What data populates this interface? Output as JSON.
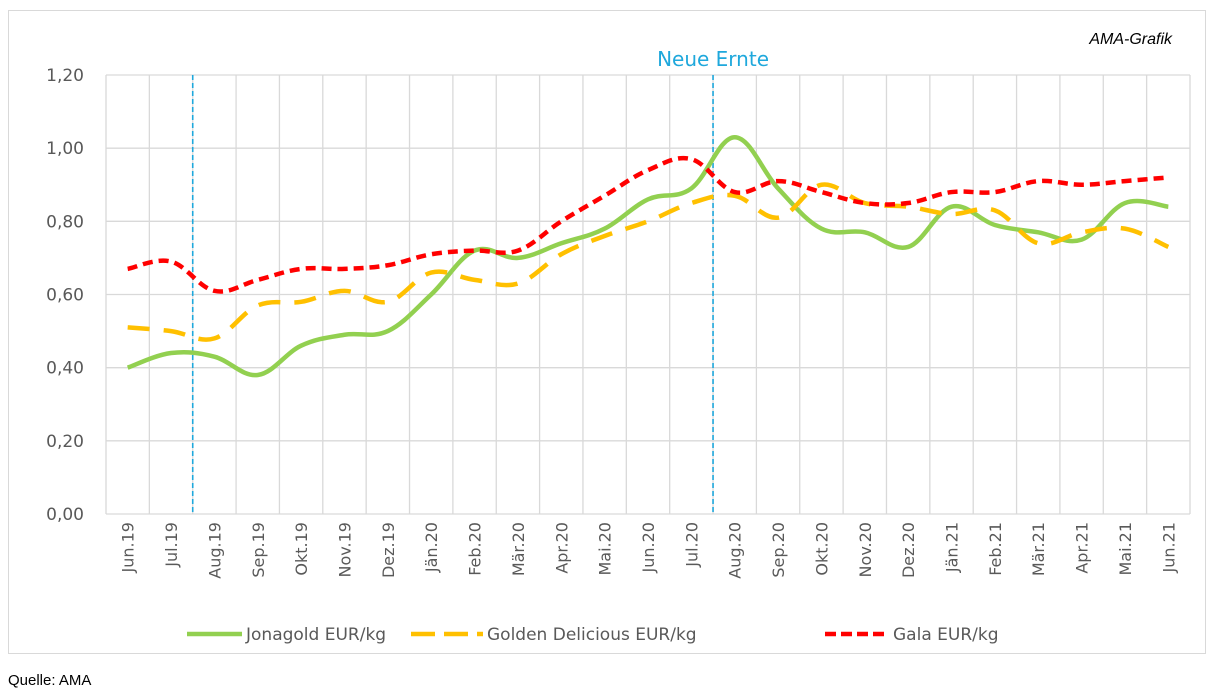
{
  "credit": "AMA-Grafik",
  "source": "Quelle: AMA",
  "colors": {
    "jonagold": "#92D050",
    "golden": "#FFC000",
    "gala": "#FF0000",
    "marker": "#1FA8DC",
    "grid": "#d9d9d9",
    "text": "#595959"
  },
  "chart_data": {
    "type": "line",
    "title": "",
    "xlabel": "",
    "ylabel": "",
    "ylim": [
      0,
      1.2
    ],
    "yticks": [
      "0,00",
      "0,20",
      "0,40",
      "0,60",
      "0,80",
      "1,00",
      "1,20"
    ],
    "ytick_values": [
      0,
      0.2,
      0.4,
      0.6,
      0.8,
      1.0,
      1.2
    ],
    "grid": true,
    "legend_position": "bottom",
    "categories": [
      "Jun.19",
      "Jul.19",
      "Aug.19",
      "Sep.19",
      "Okt.19",
      "Nov.19",
      "Dez.19",
      "Jän.20",
      "Feb.20",
      "Mär.20",
      "Apr.20",
      "Mai.20",
      "Jun.20",
      "Jul.20",
      "Aug.20",
      "Sep.20",
      "Okt.20",
      "Nov.20",
      "Dez.20",
      "Jän.21",
      "Feb.21",
      "Mär.21",
      "Apr.21",
      "Mai.21",
      "Jun.21"
    ],
    "series": [
      {
        "name": "Jonagold EUR/kg",
        "style": "solid",
        "color": "#92D050",
        "values": [
          0.4,
          0.44,
          0.43,
          0.38,
          0.46,
          0.49,
          0.5,
          0.6,
          0.72,
          0.7,
          0.74,
          0.78,
          0.86,
          0.89,
          1.03,
          0.89,
          0.78,
          0.77,
          0.73,
          0.84,
          0.79,
          0.77,
          0.75,
          0.85,
          0.84
        ]
      },
      {
        "name": "Golden Delicious EUR/kg",
        "style": "long-dash",
        "color": "#FFC000",
        "values": [
          0.51,
          0.5,
          0.48,
          0.57,
          0.58,
          0.61,
          0.58,
          0.66,
          0.64,
          0.63,
          0.71,
          0.76,
          0.8,
          0.85,
          0.87,
          0.81,
          0.9,
          0.85,
          0.84,
          0.82,
          0.83,
          0.74,
          0.77,
          0.78,
          0.73
        ]
      },
      {
        "name": "Gala EUR/kg",
        "style": "short-dash",
        "color": "#FF0000",
        "values": [
          0.67,
          0.69,
          0.61,
          0.64,
          0.67,
          0.67,
          0.68,
          0.71,
          0.72,
          0.72,
          0.8,
          0.87,
          0.94,
          0.97,
          0.88,
          0.91,
          0.88,
          0.85,
          0.85,
          0.88,
          0.88,
          0.91,
          0.9,
          0.91,
          0.92
        ]
      }
    ],
    "annotations": [
      {
        "type": "vline",
        "between": [
          "Jul.19",
          "Aug.19"
        ],
        "label": ""
      },
      {
        "type": "vline",
        "between": [
          "Jul.20",
          "Aug.20"
        ],
        "label": "Neue Ernte"
      }
    ]
  }
}
